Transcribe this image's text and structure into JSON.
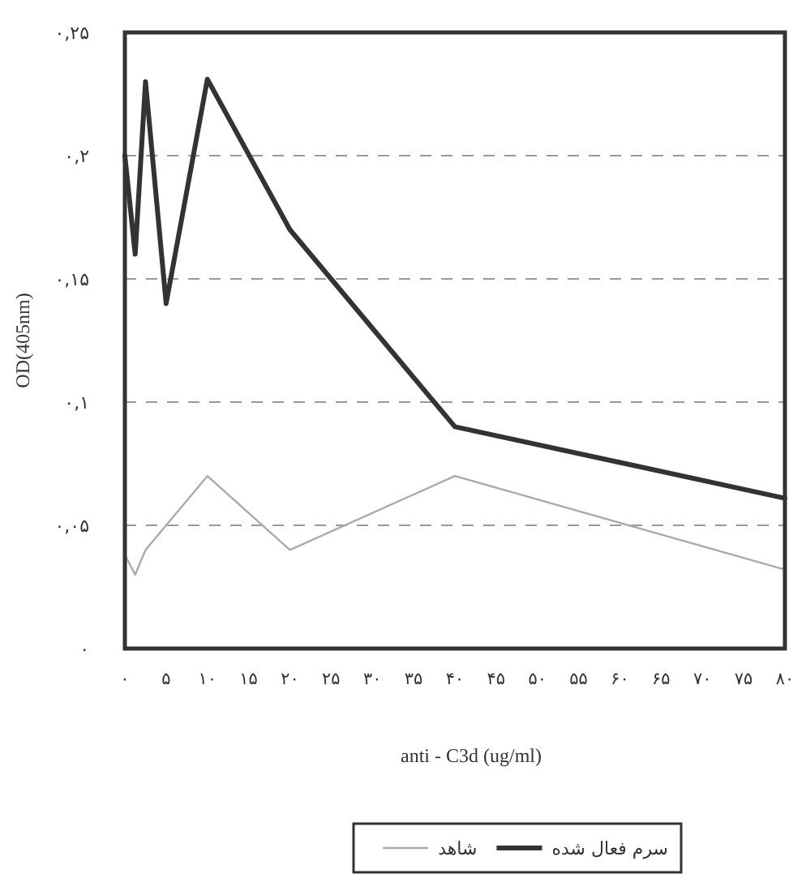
{
  "chart_data": {
    "type": "line",
    "xlabel": "anti - C3d (ug/ml)",
    "ylabel": "OD(405nm)",
    "x": [
      0,
      1.25,
      2.5,
      5,
      10,
      20,
      40,
      80
    ],
    "series": [
      {
        "name": "سرم فعال شده",
        "color": "#333333",
        "values": [
          0.2,
          0.16,
          0.23,
          0.14,
          0.231,
          0.17,
          0.09,
          0.061
        ]
      },
      {
        "name": "شاهد",
        "color": "#aaaaaa",
        "values": [
          0.038,
          0.03,
          0.04,
          0.05,
          0.07,
          0.04,
          0.07,
          0.032
        ]
      }
    ],
    "xlim": [
      0,
      80
    ],
    "xticks": [
      {
        "value": 0,
        "label": "۰"
      },
      {
        "value": 5,
        "label": "۵"
      },
      {
        "value": 10,
        "label": "۱۰"
      },
      {
        "value": 15,
        "label": "۱۵"
      },
      {
        "value": 20,
        "label": "۲۰"
      },
      {
        "value": 25,
        "label": "۲۵"
      },
      {
        "value": 30,
        "label": "۳۰"
      },
      {
        "value": 35,
        "label": "۳۵"
      },
      {
        "value": 40,
        "label": "۴۰"
      },
      {
        "value": 45,
        "label": "۴۵"
      },
      {
        "value": 50,
        "label": "۵۰"
      },
      {
        "value": 55,
        "label": "۵۵"
      },
      {
        "value": 60,
        "label": "۶۰"
      },
      {
        "value": 65,
        "label": "۶۵"
      },
      {
        "value": 70,
        "label": "۷۰"
      },
      {
        "value": 75,
        "label": "۷۵"
      },
      {
        "value": 80,
        "label": "۸۰"
      }
    ],
    "ylim": [
      0,
      0.25
    ],
    "yticks": [
      {
        "value": 0,
        "label": "۰"
      },
      {
        "value": 0.05,
        "label": "۰,۰۵"
      },
      {
        "value": 0.1,
        "label": "۰,۱"
      },
      {
        "value": 0.15,
        "label": "۰,۱۵"
      },
      {
        "value": 0.2,
        "label": "۰,۲"
      },
      {
        "value": 0.25,
        "label": "۰,۲۵"
      }
    ],
    "grid": "y",
    "legend": "bottom",
    "marker": "none",
    "line_style": "solid"
  }
}
